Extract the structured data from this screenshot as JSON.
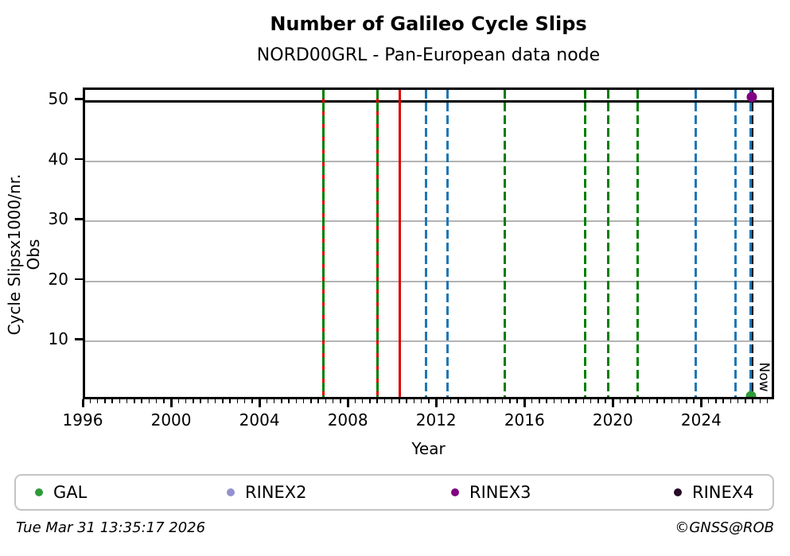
{
  "header": {
    "title": "Number of Galileo Cycle Slips",
    "subtitle": "NORD00GRL - Pan-European data node"
  },
  "chart_data": {
    "type": "scatter",
    "title": "Number of Galileo Cycle Slips",
    "subtitle": "NORD00GRL - Pan-European data node",
    "xlabel": "Year",
    "ylabel": "Cycle Slipsx1000/nr. Obs",
    "xlim": [
      1996,
      2027.3
    ],
    "ylim": [
      0,
      51.9
    ],
    "x_major_ticks": [
      1996,
      2000,
      2004,
      2008,
      2012,
      2016,
      2020,
      2024
    ],
    "x_minor_step": 0.3333333,
    "y_ticks": [
      10,
      20,
      30,
      40,
      50
    ],
    "grid": "horizontal",
    "grid_color": "#b3b3b3",
    "hline": {
      "value": 50,
      "color": "#000000"
    },
    "event_lines": [
      {
        "year": 2006.8,
        "color": "#007f00",
        "style": "dashed",
        "under_color": "#dd0000"
      },
      {
        "year": 2009.25,
        "color": "#007f00",
        "style": "dashed",
        "under_color": "#dd0000"
      },
      {
        "year": 2010.25,
        "color": "#dd0000",
        "style": "solid"
      },
      {
        "year": 2011.45,
        "color": "#1f77b4",
        "style": "dashed"
      },
      {
        "year": 2012.4,
        "color": "#1f77b4",
        "style": "dashed"
      },
      {
        "year": 2015.0,
        "color": "#007f00",
        "style": "dashed"
      },
      {
        "year": 2018.65,
        "color": "#007f00",
        "style": "dashed"
      },
      {
        "year": 2019.7,
        "color": "#007f00",
        "style": "dashed"
      },
      {
        "year": 2021.0,
        "color": "#007f00",
        "style": "dashed"
      },
      {
        "year": 2023.65,
        "color": "#1f77b4",
        "style": "dashed"
      },
      {
        "year": 2025.45,
        "color": "#1f77b4",
        "style": "dashed"
      }
    ],
    "now_line": {
      "year": 2026.2,
      "label": "Now",
      "colors": [
        "#1f77b4",
        "#000000"
      ],
      "style": "dashed"
    },
    "points": [
      {
        "series": "RINEX3",
        "year": 2026.2,
        "value": 50.7,
        "color": "#800080"
      },
      {
        "series": "GAL",
        "year": 2026.15,
        "value": 0.9,
        "color": "#2e9b38"
      }
    ]
  },
  "legend": {
    "items": [
      {
        "label": "GAL",
        "color": "#2e9b38"
      },
      {
        "label": "RINEX2",
        "color": "#9191ce"
      },
      {
        "label": "RINEX3",
        "color": "#800080"
      },
      {
        "label": "RINEX4",
        "color": "#260a24"
      }
    ]
  },
  "footer": {
    "timestamp": "Tue Mar 31 13:35:17 2026",
    "credit": "©GNSS@ROB"
  }
}
